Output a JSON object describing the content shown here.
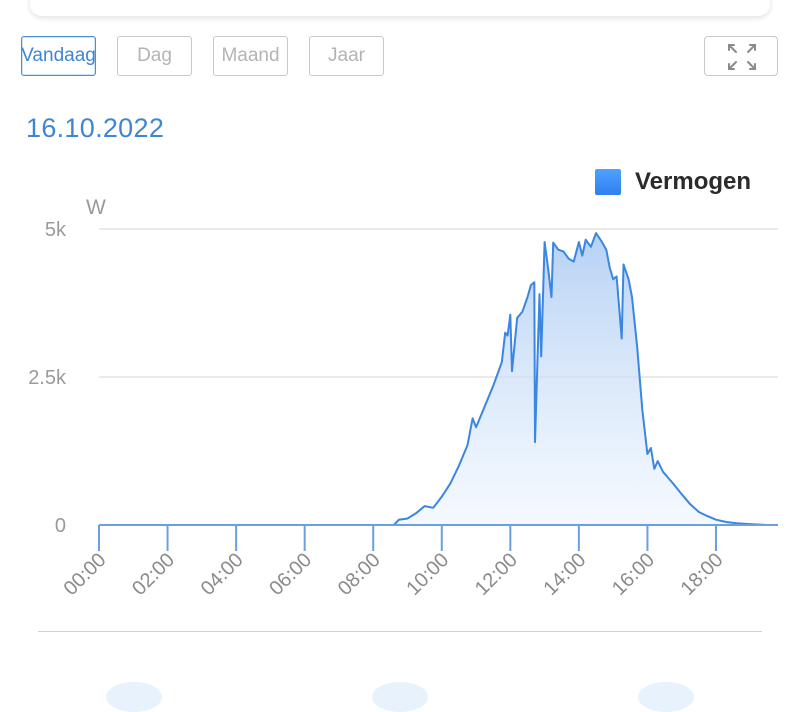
{
  "tabs": [
    {
      "label": "Vandaag",
      "active": true
    },
    {
      "label": "Dag",
      "active": false
    },
    {
      "label": "Maand",
      "active": false
    },
    {
      "label": "Jaar",
      "active": false
    }
  ],
  "expand_icon": "expand-arrows-icon",
  "date_label": "16.10.2022",
  "colors": {
    "accent": "#3f86d2",
    "series_line": "#3a86e0",
    "grid": "#e3e3e3",
    "axis_text": "#9a9a9a"
  },
  "chart_data": {
    "type": "area",
    "title": "",
    "xlabel": "",
    "ylabel": "W",
    "x_tick_labels": [
      "00:00",
      "02:00",
      "04:00",
      "06:00",
      "08:00",
      "10:00",
      "12:00",
      "14:00",
      "16:00",
      "18:00"
    ],
    "y_tick_labels": [
      "0",
      "2.5k",
      "5k"
    ],
    "y_ticks": [
      0,
      2500,
      5000
    ],
    "ylim": [
      0,
      5000
    ],
    "xlim_hours": [
      0,
      20
    ],
    "grid": true,
    "legend_position": "top-right",
    "series": [
      {
        "name": "Vermogen",
        "points": [
          [
            0,
            0
          ],
          [
            1,
            0
          ],
          [
            2,
            0
          ],
          [
            3,
            0
          ],
          [
            4,
            0
          ],
          [
            5,
            0
          ],
          [
            6,
            0
          ],
          [
            7,
            0
          ],
          [
            8,
            0
          ],
          [
            8.6,
            0
          ],
          [
            8.75,
            90
          ],
          [
            9.0,
            110
          ],
          [
            9.25,
            200
          ],
          [
            9.5,
            320
          ],
          [
            9.75,
            290
          ],
          [
            10.0,
            480
          ],
          [
            10.25,
            700
          ],
          [
            10.5,
            1000
          ],
          [
            10.75,
            1350
          ],
          [
            10.9,
            1800
          ],
          [
            11.0,
            1650
          ],
          [
            11.25,
            2000
          ],
          [
            11.5,
            2350
          ],
          [
            11.75,
            2750
          ],
          [
            11.85,
            3250
          ],
          [
            11.92,
            3200
          ],
          [
            12.0,
            3550
          ],
          [
            12.05,
            2600
          ],
          [
            12.2,
            3500
          ],
          [
            12.35,
            3600
          ],
          [
            12.5,
            3850
          ],
          [
            12.6,
            4050
          ],
          [
            12.7,
            4100
          ],
          [
            12.72,
            1400
          ],
          [
            12.85,
            3900
          ],
          [
            12.9,
            2850
          ],
          [
            13.0,
            4780
          ],
          [
            13.1,
            4350
          ],
          [
            13.2,
            3850
          ],
          [
            13.25,
            4770
          ],
          [
            13.4,
            4650
          ],
          [
            13.55,
            4620
          ],
          [
            13.7,
            4500
          ],
          [
            13.85,
            4450
          ],
          [
            14.0,
            4780
          ],
          [
            14.1,
            4550
          ],
          [
            14.2,
            4820
          ],
          [
            14.35,
            4700
          ],
          [
            14.5,
            4930
          ],
          [
            14.65,
            4800
          ],
          [
            14.8,
            4650
          ],
          [
            14.9,
            4350
          ],
          [
            15.0,
            4150
          ],
          [
            15.1,
            4200
          ],
          [
            15.25,
            3150
          ],
          [
            15.3,
            4400
          ],
          [
            15.45,
            4150
          ],
          [
            15.55,
            3850
          ],
          [
            15.7,
            3000
          ],
          [
            15.85,
            1950
          ],
          [
            16.0,
            1200
          ],
          [
            16.1,
            1300
          ],
          [
            16.2,
            950
          ],
          [
            16.3,
            1080
          ],
          [
            16.45,
            900
          ],
          [
            16.6,
            800
          ],
          [
            16.75,
            700
          ],
          [
            17.0,
            520
          ],
          [
            17.25,
            350
          ],
          [
            17.5,
            220
          ],
          [
            17.75,
            150
          ],
          [
            18.0,
            90
          ],
          [
            18.3,
            50
          ],
          [
            18.6,
            30
          ],
          [
            19.0,
            15
          ],
          [
            19.5,
            0
          ]
        ]
      }
    ]
  }
}
